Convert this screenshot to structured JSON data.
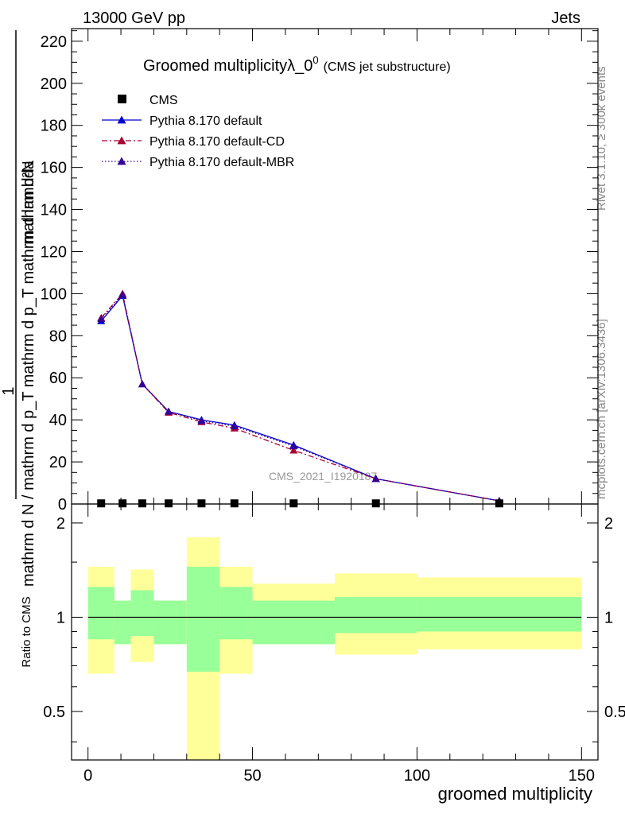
{
  "header": {
    "left": "13000 GeV pp",
    "right": "Jets"
  },
  "side_labels": {
    "rivet": "Rivet 3.1.10, ≥ 300k events",
    "mcplots": "mcplots.cern.ch [arXiv:1306.3436]"
  },
  "watermark": "CMS_2021_I1920187",
  "title": {
    "main": "Groomed multiplicityλ_0",
    "superscript": "0",
    "sub": "(CMS jet substructure)"
  },
  "colors": {
    "pythia_default": "#0000cc",
    "pythia_cd": "#aa0033",
    "pythia_mbr": "#330099",
    "band_inner": "#99ff99",
    "band_outer": "#ffff99",
    "cms": "#000000"
  },
  "chart_data": [
    {
      "type": "line",
      "panel": "main",
      "ylabel": "1 / mathrm d N / mathrm d p_T mathrm d p_T mathrm d lambda mathrm d^2N",
      "ylabel_parts": {
        "numerator": "mathrm d²N",
        "denominator": "mathrm d N / mathrm d p_T mathrm d p_T mathrm d lambda",
        "prefix": "1"
      },
      "xlim": [
        -5,
        155
      ],
      "ylim": [
        0,
        226
      ],
      "yticks": [
        0,
        20,
        40,
        60,
        80,
        100,
        120,
        140,
        160,
        180,
        200,
        220
      ],
      "legend": [
        "CMS",
        "Pythia 8.170 default",
        "Pythia 8.170 default-CD",
        "Pythia 8.170 default-MBR"
      ],
      "cms": {
        "x": [
          4,
          10.5,
          16.5,
          24.5,
          34.5,
          44.5,
          62.5,
          87.5,
          125
        ],
        "y": [
          0.3,
          0.3,
          0.3,
          0.3,
          0.3,
          0.3,
          0.3,
          0.3,
          0.3
        ]
      },
      "series": [
        {
          "name": "Pythia 8.170 default",
          "style": "solid",
          "x": [
            4,
            10.5,
            16.5,
            24.5,
            34.5,
            44.5,
            62.5,
            87.5,
            125
          ],
          "values": [
            87,
            99,
            57,
            44,
            40,
            37.5,
            28,
            12,
            1.5
          ]
        },
        {
          "name": "Pythia 8.170 default-CD",
          "style": "dashdot",
          "x": [
            4,
            10.5,
            16.5,
            24.5,
            34.5,
            44.5,
            62.5,
            87.5,
            125
          ],
          "values": [
            88.5,
            100,
            57,
            43.5,
            39,
            36,
            25.5,
            12,
            1.5
          ]
        },
        {
          "name": "Pythia 8.170 default-MBR",
          "style": "dotted",
          "x": [
            4,
            10.5,
            16.5,
            24.5,
            34.5,
            44.5,
            62.5,
            87.5,
            125
          ],
          "values": [
            88,
            99.5,
            57,
            44,
            39.5,
            37,
            27.5,
            12,
            1.5
          ]
        }
      ]
    },
    {
      "type": "area",
      "panel": "ratio",
      "ylabel": "Ratio to CMS",
      "xlabel": "groomed multiplicity",
      "xlim": [
        -5,
        155
      ],
      "ylim": [
        0.35,
        2.3
      ],
      "yticks": [
        0.5,
        1,
        2
      ],
      "xticks": [
        0,
        50,
        100,
        150
      ],
      "bands": [
        {
          "x0": 0,
          "x1": 8,
          "inner": [
            0.85,
            1.25
          ],
          "outer": [
            0.66,
            1.45
          ]
        },
        {
          "x0": 8,
          "x1": 13,
          "inner": [
            0.82,
            1.13
          ],
          "outer": [
            0.82,
            1.13
          ]
        },
        {
          "x0": 13,
          "x1": 20,
          "inner": [
            0.87,
            1.22
          ],
          "outer": [
            0.72,
            1.42
          ]
        },
        {
          "x0": 20,
          "x1": 30,
          "inner": [
            0.82,
            1.13
          ],
          "outer": [
            0.82,
            1.13
          ]
        },
        {
          "x0": 30,
          "x1": 40,
          "inner": [
            0.67,
            1.45
          ],
          "outer": [
            0.35,
            1.8
          ]
        },
        {
          "x0": 40,
          "x1": 50,
          "inner": [
            0.85,
            1.25
          ],
          "outer": [
            0.66,
            1.45
          ]
        },
        {
          "x0": 50,
          "x1": 75,
          "inner": [
            0.82,
            1.13
          ],
          "outer": [
            0.82,
            1.28
          ]
        },
        {
          "x0": 75,
          "x1": 100,
          "inner": [
            0.89,
            1.16
          ],
          "outer": [
            0.76,
            1.38
          ]
        },
        {
          "x0": 100,
          "x1": 150,
          "inner": [
            0.9,
            1.16
          ],
          "outer": [
            0.79,
            1.34
          ]
        }
      ],
      "reference": 1
    }
  ]
}
